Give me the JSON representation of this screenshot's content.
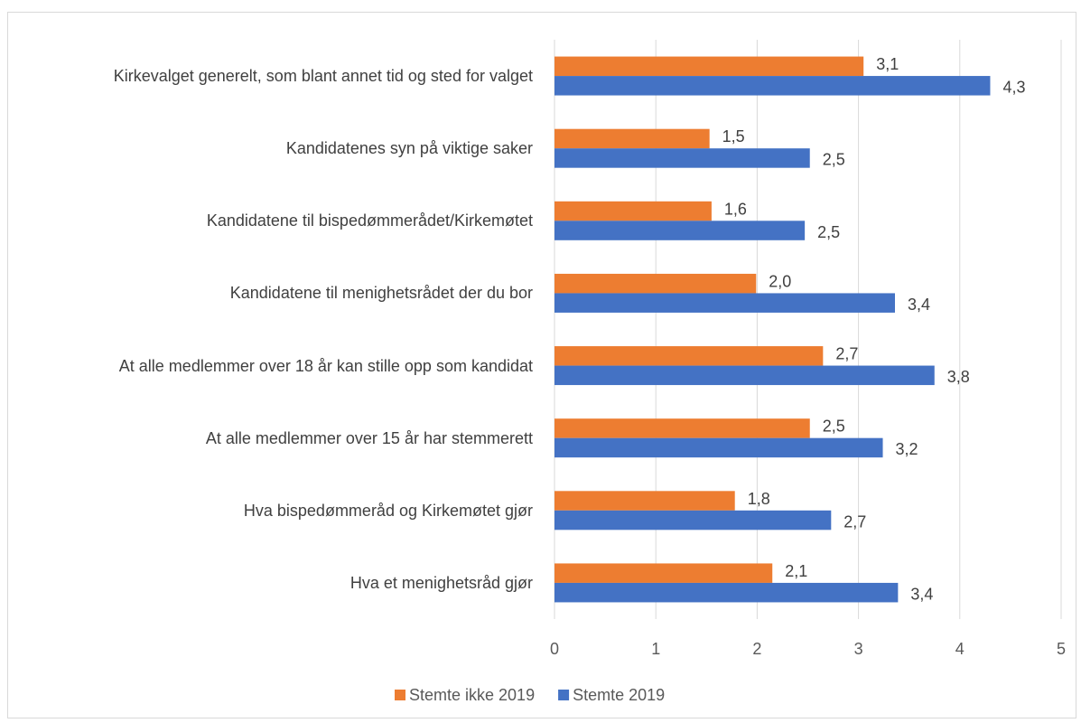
{
  "chart_data": {
    "type": "bar",
    "orientation": "horizontal",
    "categories": [
      "Kirkevalget generelt, som blant annet tid og sted for valget",
      "Kandidatenes syn på viktige saker",
      "Kandidatene til bispedømmerådet/Kirkemøtet",
      "Kandidatene til menighetsrådet der du bor",
      "At alle medlemmer over 18 år kan stille opp som kandidat",
      "At alle medlemmer over 15 år har stemmerett",
      "Hva bispedømmeråd og Kirkemøtet gjør",
      "Hva et menighetsråd gjør"
    ],
    "series": [
      {
        "name": "Stemte ikke 2019",
        "color": "#ed7d31",
        "values": [
          3.05,
          1.53,
          1.55,
          1.99,
          2.65,
          2.52,
          1.78,
          2.15
        ],
        "value_labels": [
          "3,1",
          "1,5",
          "1,6",
          "2,0",
          "2,7",
          "2,5",
          "1,8",
          "2,1"
        ]
      },
      {
        "name": "Stemte 2019",
        "color": "#4472c4",
        "values": [
          4.3,
          2.52,
          2.47,
          3.36,
          3.75,
          3.24,
          2.73,
          3.39
        ],
        "value_labels": [
          "4,3",
          "2,5",
          "2,5",
          "3,4",
          "3,8",
          "3,2",
          "2,7",
          "3,4"
        ]
      }
    ],
    "xlim": [
      0,
      5
    ],
    "xticks": [
      0,
      1,
      2,
      3,
      4,
      5
    ],
    "grid": true,
    "legend": "bottom"
  }
}
